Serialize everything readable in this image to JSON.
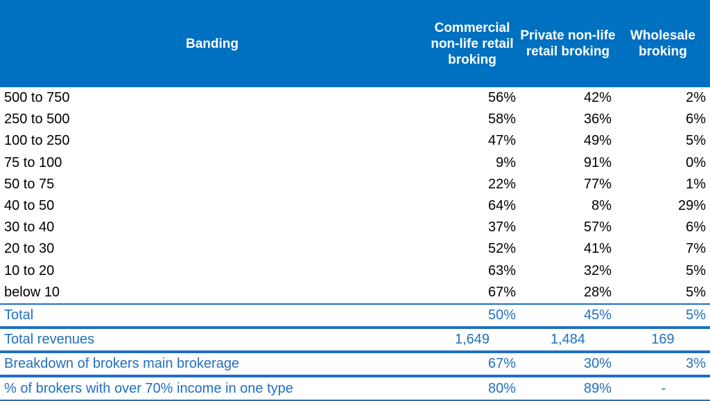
{
  "header": {
    "banding": "Banding",
    "col1": "Commercial non-life retail broking",
    "col2": "Private non-life retail broking",
    "col3": "Wholesale broking"
  },
  "rows": [
    {
      "label": "500 to 750",
      "v1": "56%",
      "v2": "42%",
      "v3": "2%"
    },
    {
      "label": "250 to 500",
      "v1": "58%",
      "v2": "36%",
      "v3": "6%"
    },
    {
      "label": "100 to 250",
      "v1": "47%",
      "v2": "49%",
      "v3": "5%"
    },
    {
      "label": "75 to 100",
      "v1": "9%",
      "v2": "91%",
      "v3": "0%"
    },
    {
      "label": "50 to 75",
      "v1": "22%",
      "v2": "77%",
      "v3": "1%"
    },
    {
      "label": "40 to 50",
      "v1": "64%",
      "v2": "8%",
      "v3": "29%"
    },
    {
      "label": "30 to 40",
      "v1": "37%",
      "v2": "57%",
      "v3": "6%"
    },
    {
      "label": "20 to 30",
      "v1": "52%",
      "v2": "41%",
      "v3": "7%"
    },
    {
      "label": "10 to 20",
      "v1": "63%",
      "v2": "32%",
      "v3": "5%"
    },
    {
      "label": "below 10",
      "v1": "67%",
      "v2": "28%",
      "v3": "5%"
    }
  ],
  "summary": [
    {
      "label": "Total",
      "v1": "50%",
      "v2": "45%",
      "v3": "5%"
    },
    {
      "label": "Total revenues",
      "v1": "1,649",
      "v2": "1,484",
      "v3": "169"
    },
    {
      "label": "Breakdown of brokers main brokerage",
      "v1": "67%",
      "v2": "30%",
      "v3": "3%"
    },
    {
      "label": "% of brokers with over 70% income in one type",
      "v1": "80%",
      "v2": "89%",
      "v3": "-"
    }
  ],
  "colors": {
    "header_bg": "#0070C0",
    "summary_text": "#1F6FC0"
  }
}
